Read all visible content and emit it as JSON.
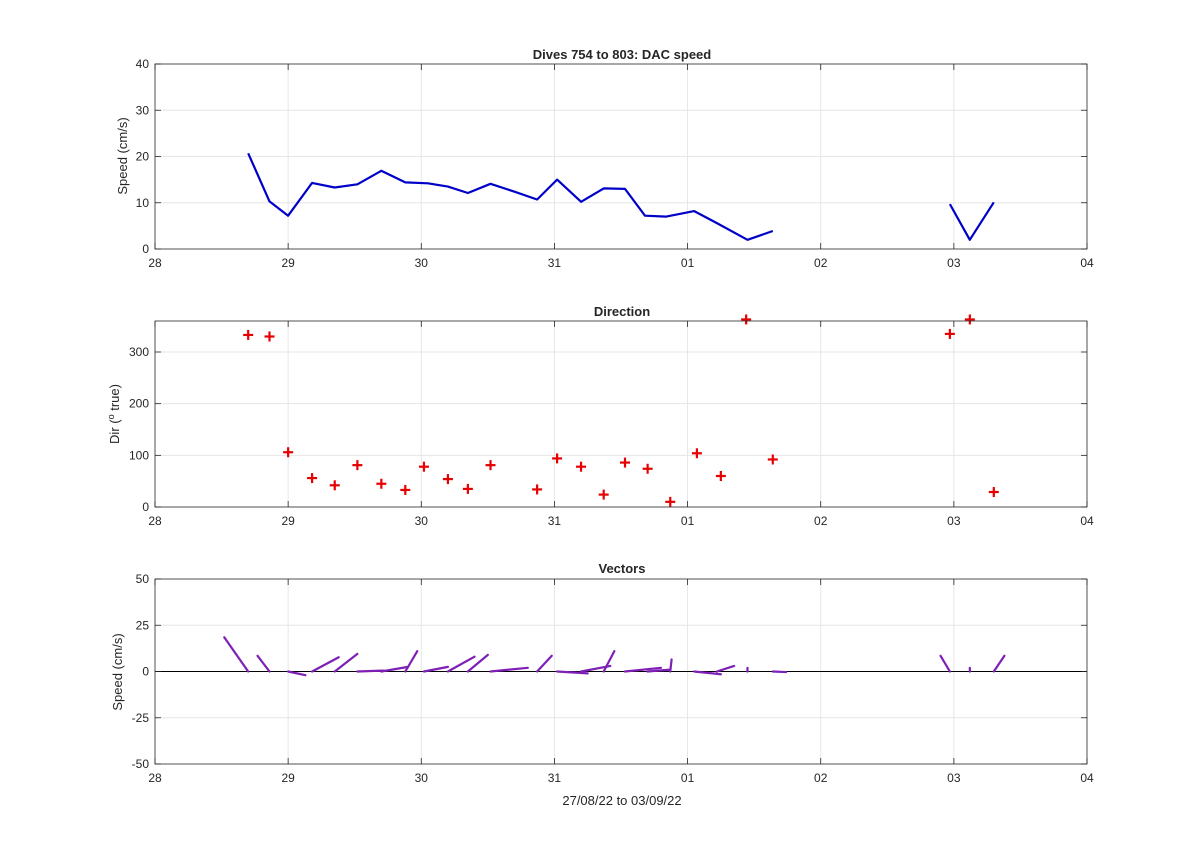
{
  "figure": {
    "xlabel": "27/08/22 to 03/09/22"
  },
  "x_tick_labels": [
    "28",
    "29",
    "30",
    "31",
    "01",
    "02",
    "03",
    "04"
  ],
  "colors": {
    "speed_line": "#0000c8",
    "direction_marker": "#e60000",
    "vector_line": "#7e1fb5",
    "grid": "#e6e6e6",
    "axis": "#262626"
  },
  "chart_data": [
    {
      "type": "line",
      "title": "Dives 754 to 803: DAC speed",
      "xlabel": "",
      "ylabel": "Speed (cm/s)",
      "x_unit": "days (day 0 = 28)",
      "xlim": [
        0,
        7
      ],
      "ylim": [
        0,
        40
      ],
      "yticks": [
        0,
        10,
        20,
        30,
        40
      ],
      "grid": true,
      "series": [
        {
          "segments": [
            [
              [
                0.7,
                20.7
              ],
              [
                0.86,
                10.3
              ],
              [
                1.0,
                7.2
              ],
              [
                1.18,
                14.3
              ],
              [
                1.35,
                13.3
              ],
              [
                1.52,
                14.0
              ],
              [
                1.7,
                16.9
              ],
              [
                1.88,
                14.4
              ],
              [
                2.05,
                14.2
              ],
              [
                2.2,
                13.5
              ],
              [
                2.35,
                12.1
              ],
              [
                2.52,
                14.1
              ],
              [
                2.7,
                12.4
              ],
              [
                2.87,
                10.7
              ],
              [
                3.02,
                15.0
              ],
              [
                3.2,
                10.2
              ],
              [
                3.37,
                13.1
              ],
              [
                3.53,
                13.0
              ],
              [
                3.68,
                7.2
              ],
              [
                3.84,
                7.0
              ],
              [
                4.05,
                8.2
              ],
              [
                4.22,
                5.6
              ],
              [
                4.45,
                2.0
              ],
              [
                4.64,
                3.9
              ]
            ],
            [
              [
                5.97,
                9.7
              ],
              [
                6.12,
                2.0
              ],
              [
                6.3,
                10.1
              ]
            ]
          ]
        }
      ]
    },
    {
      "type": "scatter",
      "title": "Direction",
      "xlabel": "",
      "ylabel_main": "Dir (",
      "ylabel_sup": "o",
      "ylabel_tail": " true)",
      "x_unit": "days (day 0 = 28)",
      "xlim": [
        0,
        7
      ],
      "ylim": [
        0,
        360
      ],
      "yticks": [
        0,
        100,
        200,
        300
      ],
      "grid": true,
      "marker": "+",
      "points": [
        [
          0.7,
          333
        ],
        [
          0.86,
          330
        ],
        [
          1.0,
          106
        ],
        [
          1.18,
          56
        ],
        [
          1.35,
          42
        ],
        [
          1.52,
          81
        ],
        [
          1.7,
          45
        ],
        [
          1.88,
          33
        ],
        [
          2.02,
          78
        ],
        [
          2.2,
          54
        ],
        [
          2.35,
          35
        ],
        [
          2.52,
          81
        ],
        [
          2.87,
          34
        ],
        [
          3.02,
          94
        ],
        [
          3.2,
          78
        ],
        [
          3.37,
          24
        ],
        [
          3.53,
          86
        ],
        [
          3.7,
          74
        ],
        [
          3.87,
          10
        ],
        [
          4.07,
          104
        ],
        [
          4.25,
          60
        ],
        [
          4.44,
          363
        ],
        [
          4.64,
          92
        ],
        [
          5.97,
          335
        ],
        [
          6.12,
          363
        ],
        [
          6.3,
          29
        ]
      ]
    },
    {
      "type": "line",
      "title": "Vectors",
      "xlabel": "27/08/22 to 03/09/22",
      "ylabel": "Speed (cm/s)",
      "x_unit": "days (day 0 = 28)",
      "xlim": [
        0,
        7
      ],
      "ylim": [
        -50,
        50
      ],
      "yticks": [
        -50,
        -25,
        0,
        25,
        50
      ],
      "grid": true,
      "zero_line": true,
      "vectors": [
        [
          0.7,
          0.0,
          0.52,
          18.5
        ],
        [
          0.86,
          0.0,
          0.77,
          8.5
        ],
        [
          1.0,
          0.0,
          1.13,
          -2.0
        ],
        [
          1.18,
          0.0,
          1.38,
          7.7
        ],
        [
          1.35,
          0.0,
          1.52,
          9.5
        ],
        [
          1.52,
          0.0,
          1.72,
          0.5
        ],
        [
          1.7,
          0.0,
          1.9,
          2.5
        ],
        [
          1.88,
          0.0,
          1.97,
          11.0
        ],
        [
          2.02,
          0.0,
          2.2,
          2.5
        ],
        [
          2.2,
          0.0,
          2.4,
          8.0
        ],
        [
          2.35,
          0.0,
          2.5,
          9.0
        ],
        [
          2.52,
          0.0,
          2.8,
          2.0
        ],
        [
          2.87,
          0.0,
          2.98,
          8.5
        ],
        [
          3.02,
          0.0,
          3.25,
          -1.0
        ],
        [
          3.2,
          0.0,
          3.42,
          3.0
        ],
        [
          3.37,
          0.0,
          3.45,
          11.0
        ],
        [
          3.53,
          0.0,
          3.8,
          2.0
        ],
        [
          3.7,
          0.0,
          3.87,
          1.0
        ],
        [
          3.87,
          0.0,
          3.88,
          6.5
        ],
        [
          4.05,
          0.0,
          4.25,
          -1.5
        ],
        [
          4.22,
          0.0,
          4.35,
          3.0
        ],
        [
          4.45,
          0.0,
          4.45,
          2.0
        ],
        [
          4.64,
          0.0,
          4.74,
          -0.3
        ],
        [
          5.97,
          0.0,
          5.9,
          8.5
        ],
        [
          6.12,
          0.0,
          6.12,
          2.0
        ],
        [
          6.3,
          0.0,
          6.38,
          8.5
        ]
      ]
    }
  ]
}
